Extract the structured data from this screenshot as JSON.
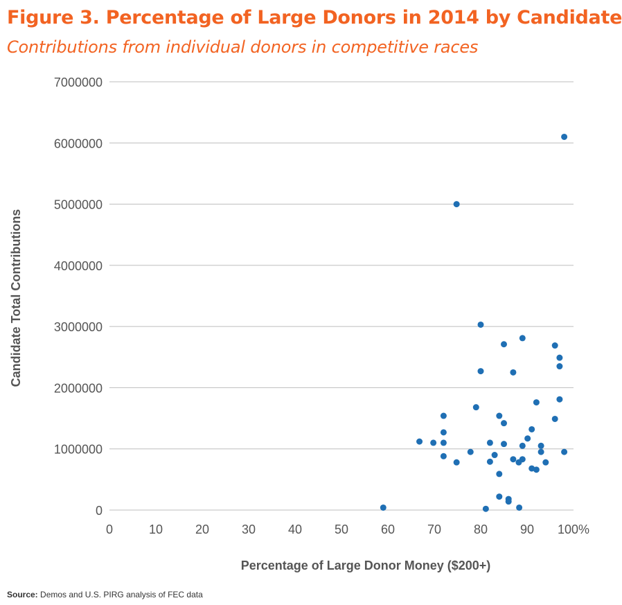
{
  "header": {
    "title": "Figure 3. Percentage of Large Donors in 2014 by Candidate",
    "subtitle": "Contributions from individual donors in competitive races"
  },
  "footer": {
    "source_label": "Source:",
    "source_text": " Demos and U.S. PIRG analysis of FEC data"
  },
  "colors": {
    "title": "#f26322",
    "points": "#1f6fb4",
    "grid": "#bdbdbd",
    "text": "#555555"
  },
  "chart_data": {
    "type": "scatter",
    "title": "Figure 3. Percentage of Large Donors in 2014 by Candidate",
    "subtitle": "Contributions from individual donors in competitive races",
    "xlabel": "Percentage of Large Donor Money ($200+)",
    "ylabel": "Candidate Total Contributions",
    "xlim": [
      0,
      100
    ],
    "ylim": [
      0,
      7000000
    ],
    "x_ticks": [
      0,
      10,
      20,
      30,
      40,
      50,
      60,
      70,
      80,
      90,
      100
    ],
    "x_tick_labels": [
      "0",
      "10",
      "20",
      "30",
      "40",
      "50",
      "60",
      "70",
      "80",
      "90",
      "100%"
    ],
    "y_ticks": [
      0,
      1000000,
      2000000,
      3000000,
      4000000,
      5000000,
      6000000,
      7000000
    ],
    "y_tick_labels": [
      "0",
      "1000000",
      "2000000",
      "3000000",
      "4000000",
      "5000000",
      "6000000",
      "7000000"
    ],
    "grid": "horizontal",
    "legend": "none",
    "points": [
      {
        "x": 59,
        "y": 40000
      },
      {
        "x": 66.8,
        "y": 1120000
      },
      {
        "x": 69.8,
        "y": 1100000
      },
      {
        "x": 72,
        "y": 1540000
      },
      {
        "x": 72,
        "y": 1270000
      },
      {
        "x": 72,
        "y": 1100000
      },
      {
        "x": 72,
        "y": 880000
      },
      {
        "x": 74.8,
        "y": 5000000
      },
      {
        "x": 74.8,
        "y": 780000
      },
      {
        "x": 77.8,
        "y": 950000
      },
      {
        "x": 79,
        "y": 1680000
      },
      {
        "x": 80,
        "y": 3030000
      },
      {
        "x": 80,
        "y": 2270000
      },
      {
        "x": 81.1,
        "y": 20000
      },
      {
        "x": 82,
        "y": 1100000
      },
      {
        "x": 82,
        "y": 790000
      },
      {
        "x": 83,
        "y": 900000
      },
      {
        "x": 84,
        "y": 1540000
      },
      {
        "x": 84,
        "y": 590000
      },
      {
        "x": 84,
        "y": 220000
      },
      {
        "x": 85,
        "y": 2710000
      },
      {
        "x": 85,
        "y": 1420000
      },
      {
        "x": 85,
        "y": 1080000
      },
      {
        "x": 86,
        "y": 180000
      },
      {
        "x": 86,
        "y": 140000
      },
      {
        "x": 87,
        "y": 2250000
      },
      {
        "x": 87,
        "y": 830000
      },
      {
        "x": 88.2,
        "y": 780000
      },
      {
        "x": 88.3,
        "y": 40000
      },
      {
        "x": 89,
        "y": 2810000
      },
      {
        "x": 89,
        "y": 1050000
      },
      {
        "x": 89,
        "y": 830000
      },
      {
        "x": 90.1,
        "y": 1170000
      },
      {
        "x": 91,
        "y": 1320000
      },
      {
        "x": 91,
        "y": 680000
      },
      {
        "x": 92,
        "y": 1760000
      },
      {
        "x": 92,
        "y": 660000
      },
      {
        "x": 93,
        "y": 1050000
      },
      {
        "x": 93,
        "y": 950000
      },
      {
        "x": 94,
        "y": 780000
      },
      {
        "x": 96,
        "y": 2690000
      },
      {
        "x": 96,
        "y": 1490000
      },
      {
        "x": 97,
        "y": 2490000
      },
      {
        "x": 97,
        "y": 2350000
      },
      {
        "x": 97,
        "y": 1810000
      },
      {
        "x": 98,
        "y": 6100000
      },
      {
        "x": 98,
        "y": 950000
      }
    ]
  }
}
